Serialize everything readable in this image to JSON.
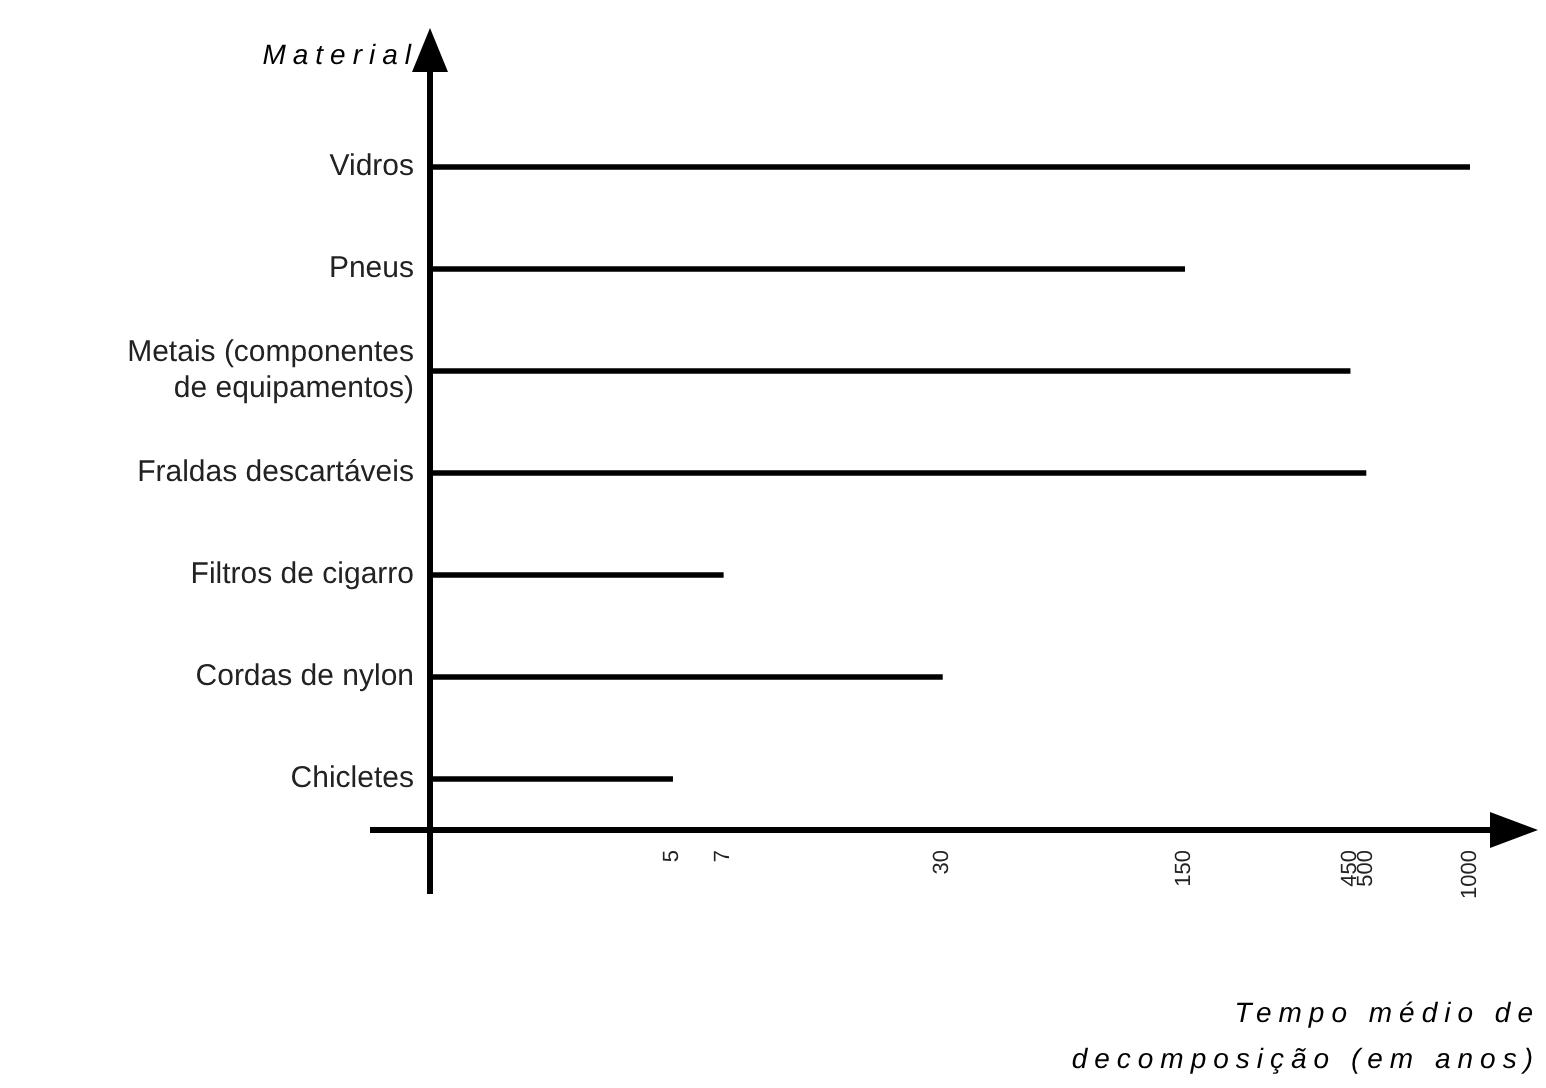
{
  "chart_data": {
    "type": "bar",
    "orientation": "horizontal",
    "xlabel": "Tempo médio de\ndecomposição (em anos)",
    "ylabel": "Material",
    "categories": [
      "Vidros",
      "Pneus",
      "Metais (componentes\nde equipamentos)",
      "Fraldas descartáveis",
      "Filtros de cigarro",
      "Cordas de nylon",
      "Chicletes"
    ],
    "values": [
      1000,
      150,
      450,
      500,
      7,
      30,
      5
    ],
    "color": "#000000",
    "xlim": [
      1,
      1000
    ],
    "log": "x",
    "xticks": [
      5,
      7,
      30,
      150,
      450,
      500,
      1000
    ]
  }
}
